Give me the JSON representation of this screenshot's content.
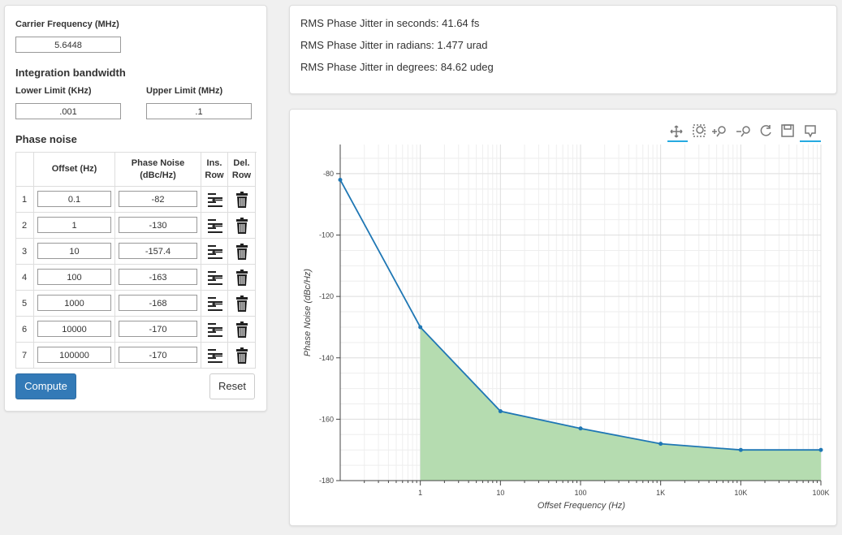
{
  "form": {
    "carrier_label": "Carrier Frequency (MHz)",
    "carrier_value": "5.6448",
    "integration_heading": "Integration bandwidth",
    "lower_label": "Lower Limit (KHz)",
    "lower_value": ".001",
    "upper_label": "Upper Limit (MHz)",
    "upper_value": ".1",
    "phase_noise_heading": "Phase noise",
    "table": {
      "headers": [
        "Offset (Hz)",
        "Phase Noise (dBc/Hz)",
        "Ins. Row",
        "Del. Row"
      ],
      "rows": [
        [
          "1",
          "0.1",
          "-82"
        ],
        [
          "2",
          "1",
          "-130"
        ],
        [
          "3",
          "10",
          "-157.4"
        ],
        [
          "4",
          "100",
          "-163"
        ],
        [
          "5",
          "1000",
          "-168"
        ],
        [
          "6",
          "10000",
          "-170"
        ],
        [
          "7",
          "100000",
          "-170"
        ]
      ]
    },
    "compute": "Compute",
    "reset": "Reset"
  },
  "results": [
    "RMS Phase Jitter in seconds: 41.64 fs",
    "RMS Phase Jitter in radians: 1.477 urad",
    "RMS Phase Jitter in degrees: 84.62 udeg"
  ],
  "chart_data": {
    "type": "line",
    "x_label": "Offset Frequency (Hz)",
    "y_label": "Phase Noise (dBc/Hz)",
    "x": [
      0.1,
      1,
      10,
      100,
      1000,
      10000,
      100000
    ],
    "values": [
      -82,
      -130,
      -157.4,
      -163,
      -168,
      -170,
      -170
    ],
    "color": "#1f77b4",
    "fill_color": "#b5dcb0",
    "x_log": true,
    "grid": true,
    "xlim": [
      0.1,
      100000
    ],
    "xticks": [
      1,
      10,
      100,
      {
        "value": 1000,
        "label": "1K"
      },
      {
        "value": 10000,
        "label": "10K"
      },
      {
        "value": 100000,
        "label": "100K"
      }
    ],
    "ylim": [
      -180,
      -70.5
    ],
    "yticks": [
      -180,
      -160,
      -140,
      -120,
      -100,
      -80
    ]
  }
}
